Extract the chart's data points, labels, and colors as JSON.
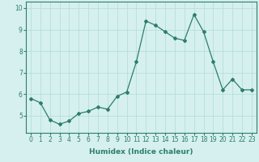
{
  "x": [
    0,
    1,
    2,
    3,
    4,
    5,
    6,
    7,
    8,
    9,
    10,
    11,
    12,
    13,
    14,
    15,
    16,
    17,
    18,
    19,
    20,
    21,
    22,
    23
  ],
  "y": [
    5.8,
    5.6,
    4.8,
    4.6,
    4.75,
    5.1,
    5.2,
    5.4,
    5.3,
    5.9,
    6.1,
    7.5,
    9.4,
    9.2,
    8.9,
    8.6,
    8.5,
    9.7,
    8.9,
    7.5,
    6.2,
    6.7,
    6.2,
    6.2
  ],
  "line_color": "#2e7d6e",
  "bg_color": "#d5f0ee",
  "grid_color": "#b0ddd8",
  "xlabel": "Humidex (Indice chaleur)",
  "xlabel_fontsize": 6.5,
  "ylabel_ticks": [
    5,
    6,
    7,
    8,
    9,
    10
  ],
  "xtick_labels": [
    "0",
    "1",
    "2",
    "3",
    "4",
    "5",
    "6",
    "7",
    "8",
    "9",
    "10",
    "11",
    "12",
    "13",
    "14",
    "15",
    "16",
    "17",
    "18",
    "19",
    "20",
    "21",
    "22",
    "23"
  ],
  "ylim": [
    4.2,
    10.3
  ],
  "xlim": [
    -0.5,
    23.5
  ],
  "tick_fontsize": 5.5,
  "marker_size": 2.0,
  "line_width": 0.9
}
